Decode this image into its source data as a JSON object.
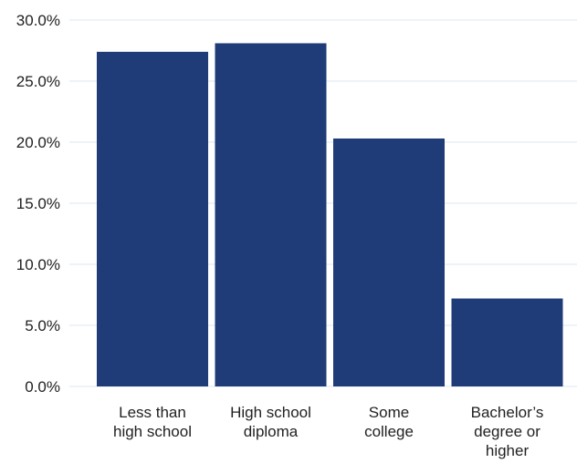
{
  "chart_data": {
    "type": "bar",
    "title": "",
    "xlabel": "",
    "ylabel": "",
    "categories": [
      [
        "Less than",
        "high school"
      ],
      [
        "High school",
        "diploma"
      ],
      [
        "Some",
        "college"
      ],
      [
        "Bachelor’s",
        "degree or",
        "higher"
      ]
    ],
    "values": [
      27.4,
      28.1,
      20.3,
      7.2
    ],
    "ylim": [
      0,
      30
    ],
    "yticks": [
      0,
      5,
      10,
      15,
      20,
      25,
      30
    ],
    "ytick_labels": [
      "0.0%",
      "5.0%",
      "10.0%",
      "15.0%",
      "20.0%",
      "25.0%",
      "30.0%"
    ],
    "grid": true,
    "bar_color": "#1f3b78",
    "grid_color": "#dce7ef"
  }
}
